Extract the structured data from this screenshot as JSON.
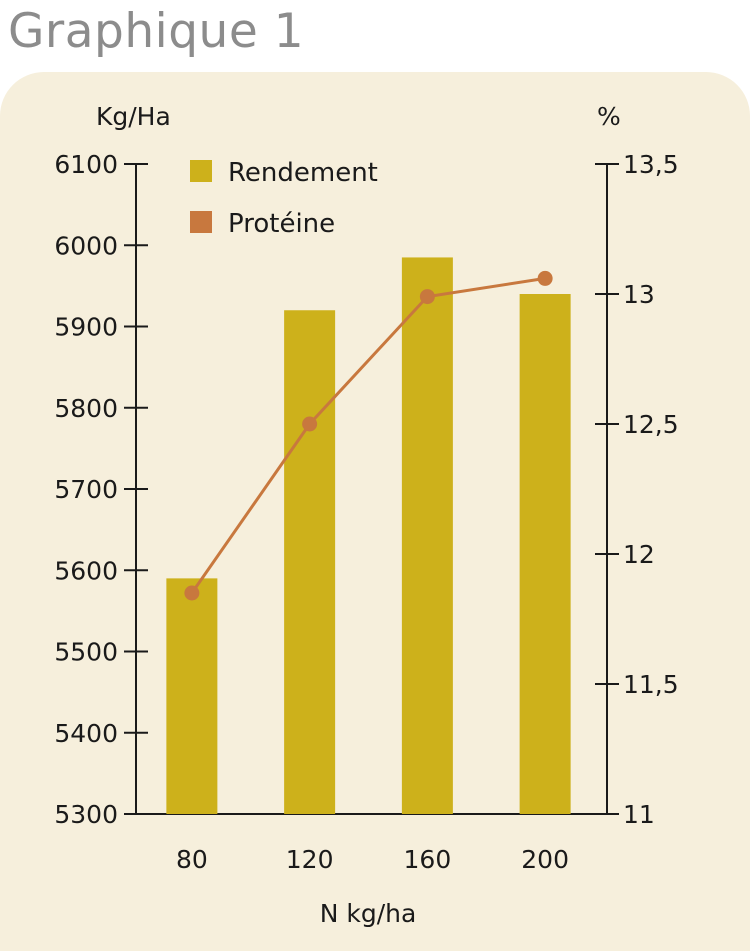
{
  "header": {
    "title": "Graphique 1"
  },
  "chart_data": {
    "type": "bar",
    "categories": [
      "80",
      "120",
      "160",
      "200"
    ],
    "series": [
      {
        "name": "Rendement",
        "type": "bar",
        "axis": "left",
        "color": "#cdb11b",
        "values": [
          5590,
          5920,
          5985,
          5940
        ]
      },
      {
        "name": "Protéine",
        "type": "line",
        "axis": "right",
        "color": "#c8783e",
        "values": [
          11.85,
          12.5,
          12.99,
          13.06
        ]
      }
    ],
    "xlabel": "N kg/ha",
    "ylabel": "Kg/Ha",
    "y2label": "%",
    "ylim": [
      5300,
      6100
    ],
    "y2lim": [
      11,
      13.5
    ],
    "yticks": [
      {
        "value": 5300,
        "label": "5300"
      },
      {
        "value": 5400,
        "label": "5400"
      },
      {
        "value": 5500,
        "label": "5500"
      },
      {
        "value": 5600,
        "label": "5600"
      },
      {
        "value": 5700,
        "label": "5700"
      },
      {
        "value": 5800,
        "label": "5800"
      },
      {
        "value": 5900,
        "label": "5900"
      },
      {
        "value": 6000,
        "label": "6000"
      },
      {
        "value": 6100,
        "label": "6100"
      }
    ],
    "y2ticks": [
      {
        "value": 11,
        "label": "11"
      },
      {
        "value": 11.5,
        "label": "11,5"
      },
      {
        "value": 12,
        "label": "12"
      },
      {
        "value": 12.5,
        "label": "12,5"
      },
      {
        "value": 13,
        "label": "13"
      },
      {
        "value": 13.5,
        "label": "13,5"
      }
    ],
    "grid": false,
    "legend": "top-left"
  }
}
